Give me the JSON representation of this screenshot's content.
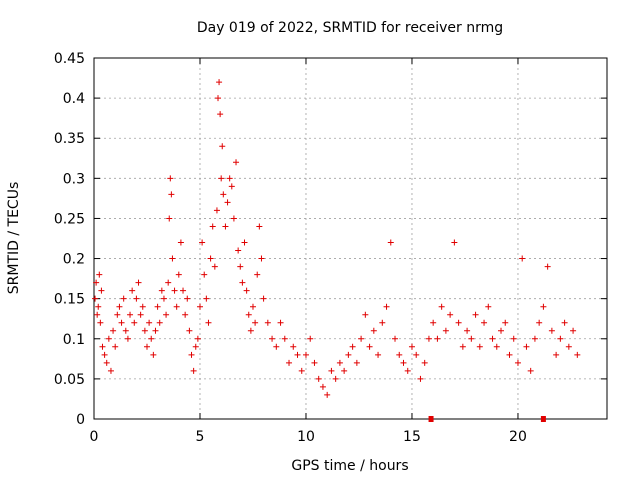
{
  "chart_data": {
    "type": "scatter",
    "title": "Day 019 of 2022, SRMTID for receiver nrmg",
    "xlabel": "GPS time / hours",
    "ylabel": "SRMTID / TECUs",
    "xlim": [
      0,
      24.2
    ],
    "ylim": [
      0,
      0.45
    ],
    "xticks": [
      0,
      5,
      10,
      15,
      20
    ],
    "xtick_labels": [
      "0",
      "5",
      "10",
      "15",
      "20"
    ],
    "yticks": [
      0,
      0.05,
      0.1,
      0.15,
      0.2,
      0.25,
      0.3,
      0.35,
      0.4,
      0.45
    ],
    "ytick_labels": [
      "0",
      "0.05",
      "0.1",
      "0.15",
      "0.2",
      "0.25",
      "0.3",
      "0.35",
      "0.4",
      "0.45"
    ],
    "grid": true,
    "marker": "+",
    "marker_color": "#e00000",
    "axis_markers": [
      15.9,
      21.2
    ],
    "series": [
      {
        "name": "SRMTID",
        "points": [
          [
            0.05,
            0.15
          ],
          [
            0.1,
            0.17
          ],
          [
            0.15,
            0.13
          ],
          [
            0.2,
            0.14
          ],
          [
            0.25,
            0.18
          ],
          [
            0.3,
            0.12
          ],
          [
            0.35,
            0.16
          ],
          [
            0.4,
            0.09
          ],
          [
            0.5,
            0.08
          ],
          [
            0.6,
            0.07
          ],
          [
            0.7,
            0.1
          ],
          [
            0.8,
            0.06
          ],
          [
            0.9,
            0.11
          ],
          [
            1.0,
            0.09
          ],
          [
            1.1,
            0.13
          ],
          [
            1.2,
            0.14
          ],
          [
            1.3,
            0.12
          ],
          [
            1.4,
            0.15
          ],
          [
            1.5,
            0.11
          ],
          [
            1.6,
            0.1
          ],
          [
            1.7,
            0.13
          ],
          [
            1.8,
            0.16
          ],
          [
            1.9,
            0.12
          ],
          [
            2.0,
            0.15
          ],
          [
            2.1,
            0.17
          ],
          [
            2.2,
            0.13
          ],
          [
            2.3,
            0.14
          ],
          [
            2.4,
            0.11
          ],
          [
            2.5,
            0.09
          ],
          [
            2.6,
            0.12
          ],
          [
            2.7,
            0.1
          ],
          [
            2.8,
            0.08
          ],
          [
            2.9,
            0.11
          ],
          [
            3.0,
            0.14
          ],
          [
            3.1,
            0.12
          ],
          [
            3.2,
            0.16
          ],
          [
            3.3,
            0.15
          ],
          [
            3.4,
            0.13
          ],
          [
            3.5,
            0.17
          ],
          [
            3.55,
            0.25
          ],
          [
            3.6,
            0.3
          ],
          [
            3.65,
            0.28
          ],
          [
            3.7,
            0.2
          ],
          [
            3.8,
            0.16
          ],
          [
            3.9,
            0.14
          ],
          [
            4.0,
            0.18
          ],
          [
            4.1,
            0.22
          ],
          [
            4.2,
            0.16
          ],
          [
            4.3,
            0.13
          ],
          [
            4.4,
            0.15
          ],
          [
            4.5,
            0.11
          ],
          [
            4.6,
            0.08
          ],
          [
            4.7,
            0.06
          ],
          [
            4.8,
            0.09
          ],
          [
            4.9,
            0.1
          ],
          [
            5.0,
            0.14
          ],
          [
            5.1,
            0.22
          ],
          [
            5.2,
            0.18
          ],
          [
            5.3,
            0.15
          ],
          [
            5.4,
            0.12
          ],
          [
            5.5,
            0.2
          ],
          [
            5.6,
            0.24
          ],
          [
            5.7,
            0.19
          ],
          [
            5.8,
            0.26
          ],
          [
            5.85,
            0.4
          ],
          [
            5.9,
            0.42
          ],
          [
            5.95,
            0.38
          ],
          [
            6.0,
            0.3
          ],
          [
            6.05,
            0.34
          ],
          [
            6.1,
            0.28
          ],
          [
            6.2,
            0.24
          ],
          [
            6.3,
            0.27
          ],
          [
            6.4,
            0.3
          ],
          [
            6.5,
            0.29
          ],
          [
            6.6,
            0.25
          ],
          [
            6.7,
            0.32
          ],
          [
            6.8,
            0.21
          ],
          [
            6.9,
            0.19
          ],
          [
            7.0,
            0.17
          ],
          [
            7.1,
            0.22
          ],
          [
            7.2,
            0.16
          ],
          [
            7.3,
            0.13
          ],
          [
            7.4,
            0.11
          ],
          [
            7.5,
            0.14
          ],
          [
            7.6,
            0.12
          ],
          [
            7.7,
            0.18
          ],
          [
            7.8,
            0.24
          ],
          [
            7.9,
            0.2
          ],
          [
            8.0,
            0.15
          ],
          [
            8.2,
            0.12
          ],
          [
            8.4,
            0.1
          ],
          [
            8.6,
            0.09
          ],
          [
            8.8,
            0.12
          ],
          [
            9.0,
            0.1
          ],
          [
            9.2,
            0.07
          ],
          [
            9.4,
            0.09
          ],
          [
            9.6,
            0.08
          ],
          [
            9.8,
            0.06
          ],
          [
            10.0,
            0.08
          ],
          [
            10.2,
            0.1
          ],
          [
            10.4,
            0.07
          ],
          [
            10.6,
            0.05
          ],
          [
            10.8,
            0.04
          ],
          [
            11.0,
            0.03
          ],
          [
            11.2,
            0.06
          ],
          [
            11.4,
            0.05
          ],
          [
            11.6,
            0.07
          ],
          [
            11.8,
            0.06
          ],
          [
            12.0,
            0.08
          ],
          [
            12.2,
            0.09
          ],
          [
            12.4,
            0.07
          ],
          [
            12.6,
            0.1
          ],
          [
            12.8,
            0.13
          ],
          [
            13.0,
            0.09
          ],
          [
            13.2,
            0.11
          ],
          [
            13.4,
            0.08
          ],
          [
            13.6,
            0.12
          ],
          [
            13.8,
            0.14
          ],
          [
            14.0,
            0.22
          ],
          [
            14.2,
            0.1
          ],
          [
            14.4,
            0.08
          ],
          [
            14.6,
            0.07
          ],
          [
            14.8,
            0.06
          ],
          [
            15.0,
            0.09
          ],
          [
            15.2,
            0.08
          ],
          [
            15.4,
            0.05
          ],
          [
            15.6,
            0.07
          ],
          [
            15.8,
            0.1
          ],
          [
            16.0,
            0.12
          ],
          [
            16.2,
            0.1
          ],
          [
            16.4,
            0.14
          ],
          [
            16.6,
            0.11
          ],
          [
            16.8,
            0.13
          ],
          [
            17.0,
            0.22
          ],
          [
            17.2,
            0.12
          ],
          [
            17.4,
            0.09
          ],
          [
            17.6,
            0.11
          ],
          [
            17.8,
            0.1
          ],
          [
            18.0,
            0.13
          ],
          [
            18.2,
            0.09
          ],
          [
            18.4,
            0.12
          ],
          [
            18.6,
            0.14
          ],
          [
            18.8,
            0.1
          ],
          [
            19.0,
            0.09
          ],
          [
            19.2,
            0.11
          ],
          [
            19.4,
            0.12
          ],
          [
            19.6,
            0.08
          ],
          [
            19.8,
            0.1
          ],
          [
            20.0,
            0.07
          ],
          [
            20.2,
            0.2
          ],
          [
            20.4,
            0.09
          ],
          [
            20.6,
            0.06
          ],
          [
            20.8,
            0.1
          ],
          [
            21.0,
            0.12
          ],
          [
            21.2,
            0.14
          ],
          [
            21.4,
            0.19
          ],
          [
            21.6,
            0.11
          ],
          [
            21.8,
            0.08
          ],
          [
            22.0,
            0.1
          ],
          [
            22.2,
            0.12
          ],
          [
            22.4,
            0.09
          ],
          [
            22.6,
            0.11
          ],
          [
            22.8,
            0.08
          ]
        ]
      }
    ]
  }
}
